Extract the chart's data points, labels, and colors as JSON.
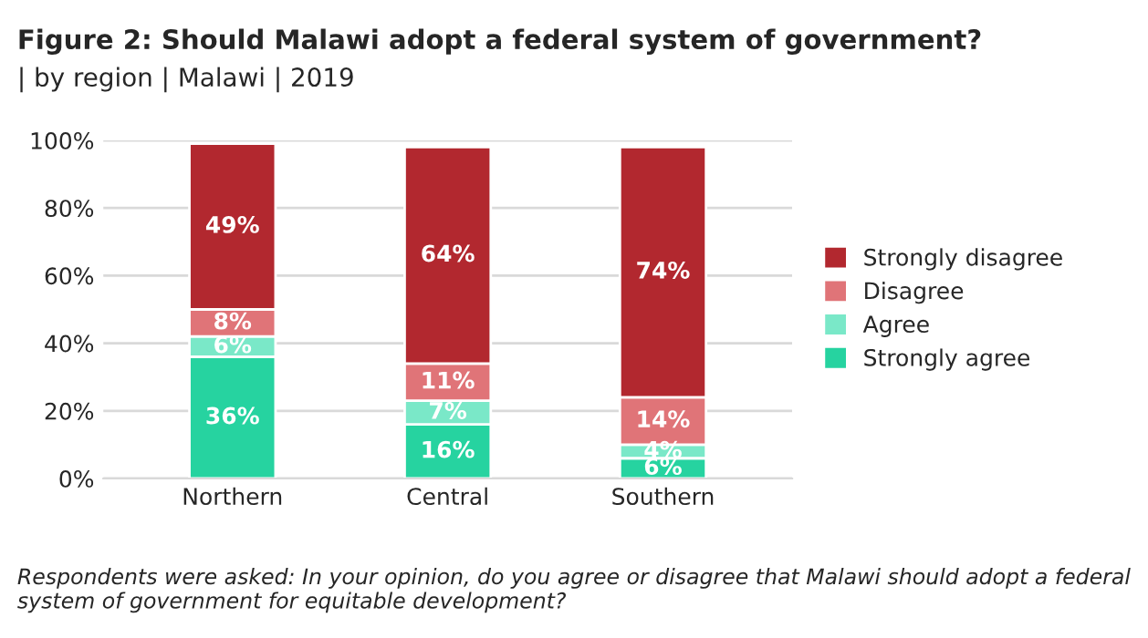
{
  "chart_data": {
    "type": "bar",
    "title": "Figure 2: Should Malawi adopt a federal system of government?",
    "subtitle": "| by region | Malawi | 2019",
    "categories": [
      "Northern",
      "Central",
      "Southern"
    ],
    "stacked": true,
    "series": [
      {
        "name": "Strongly agree",
        "color": "#26d3a0",
        "values": [
          36,
          16,
          6
        ],
        "value_labels": [
          "36%",
          "16%",
          "6%"
        ]
      },
      {
        "name": "Agree",
        "color": "#7ae8c8",
        "values": [
          6,
          7,
          4
        ],
        "value_labels": [
          "6%",
          "7%",
          "4%"
        ]
      },
      {
        "name": "Disagree",
        "color": "#e07478",
        "values": [
          8,
          11,
          14
        ],
        "value_labels": [
          "8%",
          "11%",
          "14%"
        ]
      },
      {
        "name": "Strongly disagree",
        "color": "#b2282f",
        "values": [
          49,
          64,
          74
        ],
        "value_labels": [
          "49%",
          "64%",
          "74%"
        ]
      }
    ],
    "ylim": [
      0,
      100
    ],
    "yticks": [
      {
        "value": 0,
        "label": "0%"
      },
      {
        "value": 20,
        "label": "20%"
      },
      {
        "value": 40,
        "label": "40%"
      },
      {
        "value": 60,
        "label": "60%"
      },
      {
        "value": 80,
        "label": "80%"
      },
      {
        "value": 100,
        "label": "100%"
      }
    ],
    "grid": "y",
    "legend": "right",
    "annotations": [
      "Respondents were asked: In your opinion, do you agree or disagree that Malawi should adopt a federal system of government for equitable development?"
    ]
  }
}
